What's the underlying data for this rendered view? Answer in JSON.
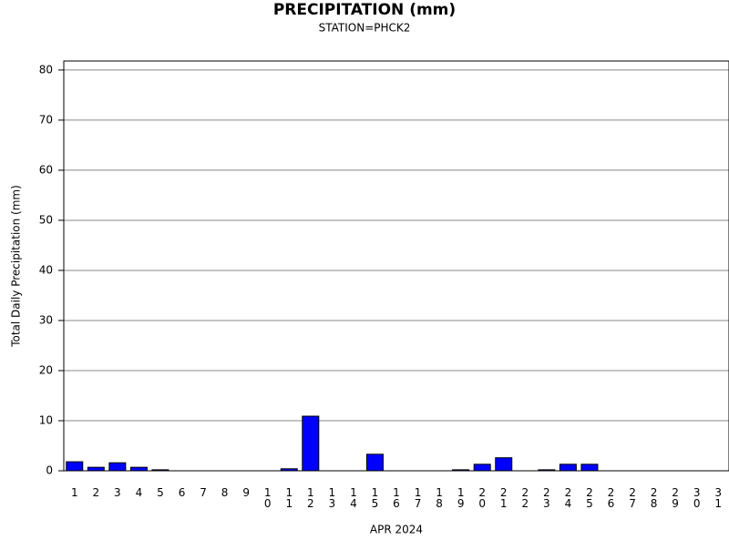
{
  "chart_data": {
    "type": "bar",
    "title": "PRECIPITATION (mm)",
    "subtitle": "STATION=PHCK2",
    "x_label": "APR 2024",
    "y_label": "Total Daily Precipitation (mm)",
    "categories": [
      "1",
      "2",
      "3",
      "4",
      "5",
      "6",
      "7",
      "8",
      "9",
      "10",
      "11",
      "12",
      "13",
      "14",
      "15",
      "16",
      "17",
      "18",
      "19",
      "20",
      "21",
      "22",
      "23",
      "24",
      "25",
      "26",
      "27",
      "28",
      "29",
      "30",
      "31"
    ],
    "values": [
      1.8,
      0.7,
      1.6,
      0.7,
      0.2,
      0,
      0,
      0,
      0,
      0,
      0.4,
      10.9,
      0,
      0,
      3.3,
      0,
      0,
      0,
      0.2,
      1.3,
      2.6,
      0,
      0.2,
      1.3,
      1.3,
      0,
      0,
      0,
      0,
      0,
      0
    ],
    "color": "#0000ff",
    "ylim": [
      0,
      81.8
    ],
    "yticks": [
      0,
      10,
      20,
      30,
      40,
      50,
      60,
      70,
      80
    ],
    "grid": true
  }
}
